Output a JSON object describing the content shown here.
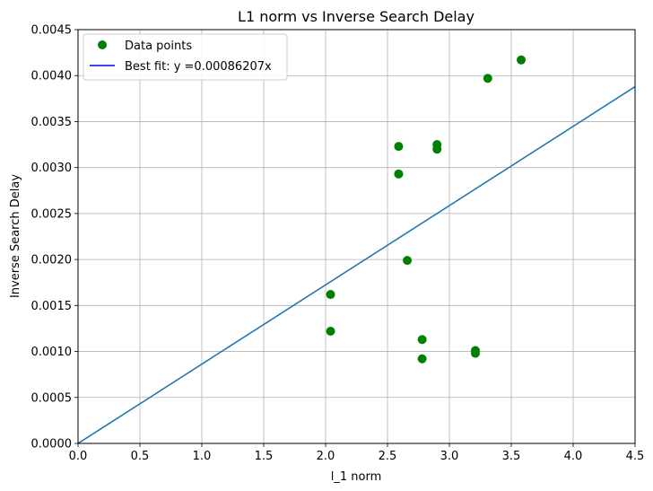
{
  "chart_data": {
    "type": "scatter",
    "title": "L1 norm vs Inverse Search Delay",
    "xlabel": "l_1 norm",
    "ylabel": "Inverse Search Delay",
    "xlim": [
      0,
      4.5
    ],
    "ylim": [
      0,
      0.0045
    ],
    "grid": true,
    "legend_position": "top-left",
    "x_ticks": [
      "0.0",
      "0.5",
      "1.0",
      "1.5",
      "2.0",
      "2.5",
      "3.0",
      "3.5",
      "4.0",
      "4.5"
    ],
    "y_ticks": [
      "0.0000",
      "0.0005",
      "0.0010",
      "0.0015",
      "0.0020",
      "0.0025",
      "0.0030",
      "0.0035",
      "0.0040",
      "0.0045"
    ],
    "series": [
      {
        "name": "Data points",
        "kind": "scatter",
        "color": "#008000",
        "points": [
          {
            "x": 2.04,
            "y": 0.00162
          },
          {
            "x": 2.04,
            "y": 0.00122
          },
          {
            "x": 2.59,
            "y": 0.00323
          },
          {
            "x": 2.59,
            "y": 0.00293
          },
          {
            "x": 2.66,
            "y": 0.00199
          },
          {
            "x": 2.78,
            "y": 0.00113
          },
          {
            "x": 2.78,
            "y": 0.00092
          },
          {
            "x": 2.9,
            "y": 0.00325
          },
          {
            "x": 2.9,
            "y": 0.0032
          },
          {
            "x": 3.21,
            "y": 0.00101
          },
          {
            "x": 3.21,
            "y": 0.00098
          },
          {
            "x": 3.31,
            "y": 0.00397
          },
          {
            "x": 3.58,
            "y": 0.00417
          }
        ]
      },
      {
        "name": "Best fit: y =0.00086207x",
        "kind": "line",
        "color": "#0000ff",
        "slope": 0.00086207
      }
    ],
    "fit_line_render_color": "#1f77b4"
  }
}
